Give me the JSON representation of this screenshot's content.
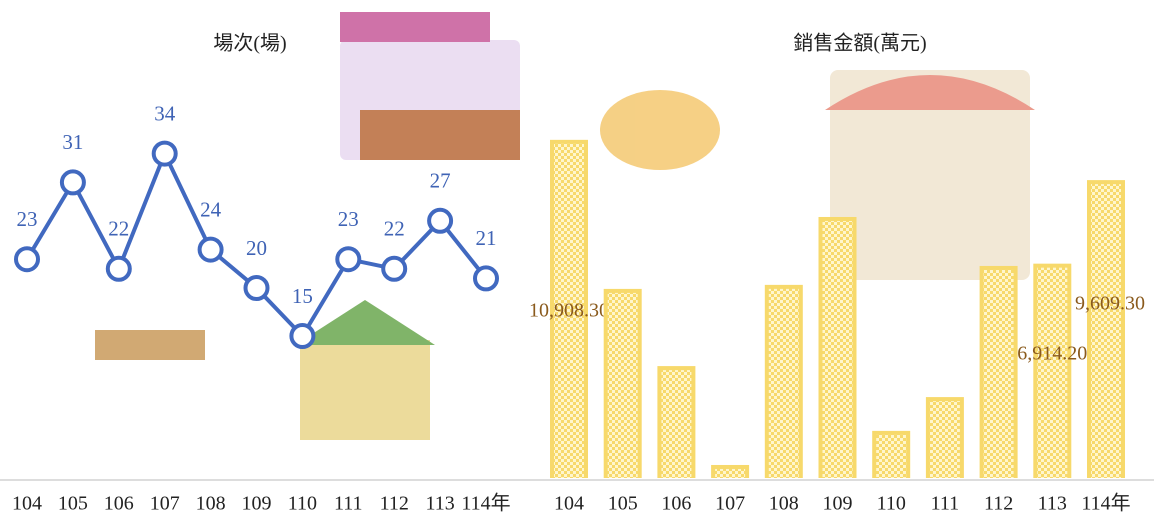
{
  "chart_data": [
    {
      "type": "line",
      "title": "場次(場)",
      "categories": [
        "104",
        "105",
        "106",
        "107",
        "108",
        "109",
        "110",
        "111",
        "112",
        "113",
        "114年"
      ],
      "series": [
        {
          "name": "場次",
          "color": "#4169c0",
          "values": [
            23,
            31,
            22,
            34,
            24,
            20,
            15,
            23,
            22,
            27,
            21
          ]
        }
      ],
      "ylim": [
        0,
        40
      ]
    },
    {
      "type": "bar",
      "title": "銷售金額(萬元)",
      "categories": [
        "104",
        "105",
        "106",
        "107",
        "108",
        "109",
        "110",
        "111",
        "112",
        "113",
        "114年"
      ],
      "values": [
        10908.3,
        6100,
        3610,
        420,
        6230,
        8420,
        1520,
        2610,
        6840,
        6914.2,
        9609.3
      ],
      "value_labels": [
        "10,908.30",
        null,
        null,
        null,
        null,
        null,
        null,
        null,
        null,
        "6,914.20",
        "9,609.30"
      ],
      "color": "#f7d96b",
      "ylim": [
        0,
        12000
      ]
    }
  ]
}
